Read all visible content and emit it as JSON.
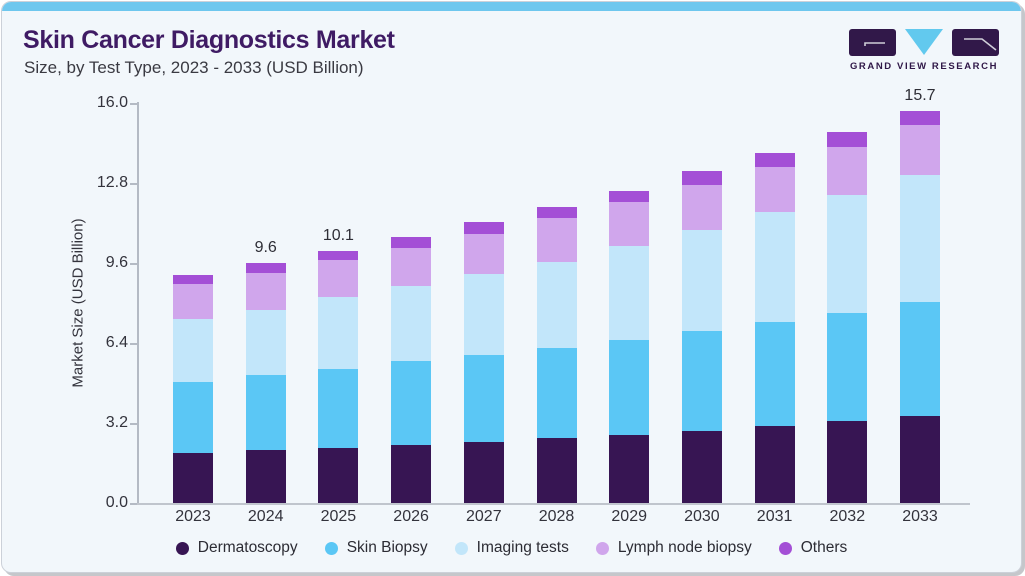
{
  "header": {
    "title": "Skin Cancer Diagnostics Market",
    "subtitle": "Size, by Test Type, 2023 - 2033 (USD Billion)"
  },
  "logo": {
    "text": "GRAND VIEW RESEARCH",
    "purple": "#311849",
    "cyan": "#62c9ee"
  },
  "chart_data": {
    "type": "bar",
    "stacked": true,
    "title": "Skin Cancer Diagnostics Market Size, by Test Type, 2023 - 2033 (USD Billion)",
    "xlabel": "",
    "ylabel": "Market Size (USD Billion)",
    "ylim": [
      0,
      16
    ],
    "yticks": [
      0.0,
      3.2,
      6.4,
      9.6,
      12.8,
      16.0
    ],
    "ytick_labels": [
      "0.0",
      "3.2",
      "6.4",
      "9.6",
      "12.8",
      "16.0"
    ],
    "grid": false,
    "legend_position": "bottom",
    "categories": [
      "2023",
      "2024",
      "2025",
      "2026",
      "2027",
      "2028",
      "2029",
      "2030",
      "2031",
      "2032",
      "2033"
    ],
    "series": [
      {
        "name": "Dermatoscopy",
        "color": "#371553",
        "values": [
          2.0,
          2.11,
          2.2,
          2.32,
          2.44,
          2.62,
          2.74,
          2.9,
          3.1,
          3.28,
          3.47
        ]
      },
      {
        "name": "Skin Biopsy",
        "color": "#5bc7f5",
        "values": [
          2.86,
          3.02,
          3.16,
          3.36,
          3.48,
          3.6,
          3.8,
          3.99,
          4.16,
          4.33,
          4.56
        ]
      },
      {
        "name": "Imaging tests",
        "color": "#c2e6fa",
        "values": [
          2.49,
          2.61,
          2.87,
          3.02,
          3.23,
          3.44,
          3.76,
          4.04,
          4.37,
          4.72,
          5.1
        ]
      },
      {
        "name": "Lymph node biopsy",
        "color": "#d0a6ec",
        "values": [
          1.41,
          1.45,
          1.5,
          1.49,
          1.63,
          1.74,
          1.75,
          1.78,
          1.83,
          1.93,
          2.01
        ]
      },
      {
        "name": "Others",
        "color": "#a44fd6",
        "values": [
          0.37,
          0.41,
          0.37,
          0.46,
          0.48,
          0.46,
          0.45,
          0.56,
          0.53,
          0.58,
          0.56
        ]
      }
    ],
    "total_labels": [
      "",
      "9.6",
      "10.1",
      "",
      "",
      "",
      "",
      "",
      "",
      "",
      "15.7"
    ]
  }
}
